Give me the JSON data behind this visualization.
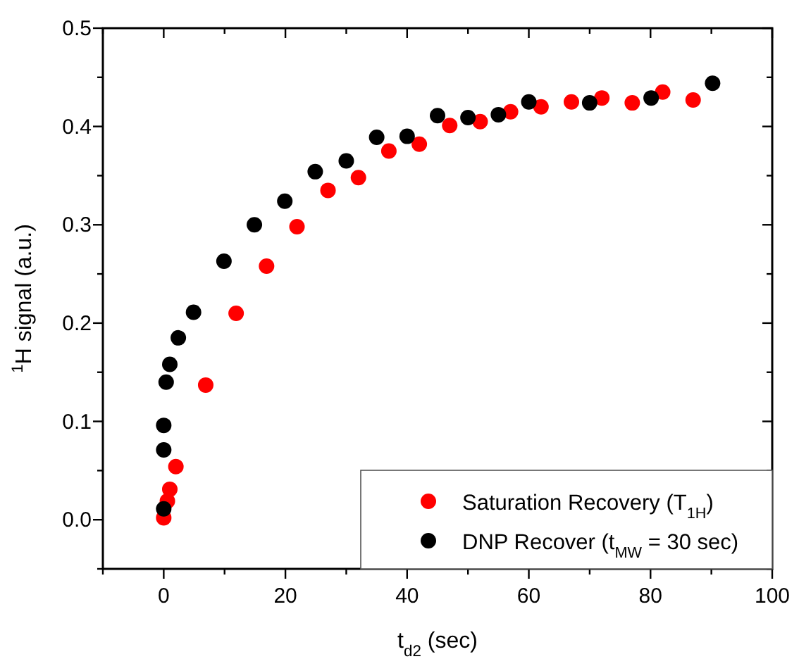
{
  "chart_data": {
    "type": "scatter",
    "xlabel": "t$_{d2}$ (sec)",
    "ylabel": "$^{1}$H signal  (a.u.)",
    "xlim": [
      -10,
      100
    ],
    "xticks": [
      {
        "value": -10,
        "label": null
      },
      0,
      {
        "value": 10,
        "label": null
      },
      20,
      {
        "value": 30,
        "label": null
      },
      40,
      {
        "value": 50,
        "label": null
      },
      60,
      {
        "value": 70,
        "label": null
      },
      80,
      {
        "value": 90,
        "label": null
      },
      100
    ],
    "ylim": [
      -0.05,
      0.5
    ],
    "yticks": [
      {
        "value": -0.05,
        "label": null
      },
      {
        "value": 0,
        "label": "0.0"
      },
      {
        "value": 0.05,
        "label": null
      },
      0.1,
      {
        "value": 0.15,
        "label": null
      },
      0.2,
      {
        "value": 0.25,
        "label": null
      },
      0.3,
      {
        "value": 0.35,
        "label": null
      },
      0.4,
      {
        "value": 0.45,
        "label": null
      },
      0.5
    ],
    "grid": false,
    "legend": "bottom right",
    "marker": "circle",
    "series": [
      {
        "name": "Saturation Recovery (T$_{1H}$)",
        "color": "#ff0000",
        "x": [
          0,
          0.6,
          1,
          2,
          6.9,
          11.9,
          16.9,
          21.9,
          27,
          32,
          37,
          42,
          47,
          52,
          57,
          62,
          67,
          72,
          77,
          82,
          87
        ],
        "values": [
          0.002,
          0.019,
          0.031,
          0.054,
          0.137,
          0.21,
          0.258,
          0.298,
          0.335,
          0.348,
          0.375,
          0.382,
          0.401,
          0.405,
          0.415,
          0.42,
          0.425,
          0.429,
          0.424,
          0.435,
          0.427
        ]
      },
      {
        "name": "DNP Recover (t$_{MW}$ = 30 sec)",
        "color": "#000000",
        "x": [
          0,
          0,
          0,
          0.4,
          1,
          2.4,
          4.9,
          9.9,
          14.9,
          19.9,
          24.9,
          30,
          35,
          40,
          45,
          50,
          55,
          60,
          70,
          80.1,
          90.2
        ],
        "values": [
          0.011,
          0.071,
          0.096,
          0.14,
          0.158,
          0.185,
          0.211,
          0.263,
          0.3,
          0.324,
          0.354,
          0.365,
          0.389,
          0.39,
          0.411,
          0.409,
          0.412,
          0.425,
          0.424,
          0.429,
          0.444
        ]
      }
    ]
  }
}
